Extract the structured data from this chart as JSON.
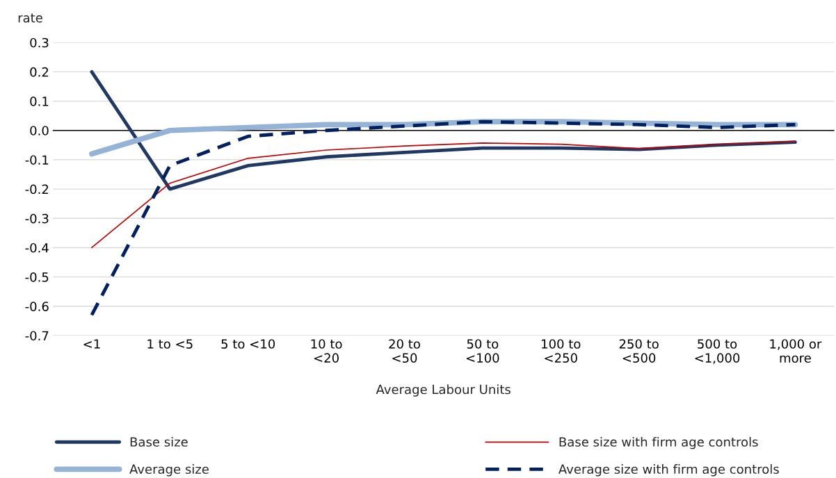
{
  "chart_data": {
    "type": "line",
    "ylabel": "rate",
    "xlabel": "Average Labour Units",
    "categories": [
      "<1",
      "1 to <5",
      "5 to <10",
      "10 to\n<20",
      "20 to\n<50",
      "50 to\n<100",
      "100 to\n<250",
      "250 to\n<500",
      "500 to\n<1,000",
      "1,000 or\nmore"
    ],
    "series": [
      {
        "name": "Base size",
        "color": "#1f3864",
        "values": [
          0.2,
          -0.2,
          -0.12,
          -0.09,
          -0.075,
          -0.06,
          -0.06,
          -0.065,
          -0.05,
          -0.04
        ]
      },
      {
        "name": "Average size",
        "color": "#95b3d7",
        "values": [
          -0.08,
          0.0,
          0.01,
          0.02,
          0.02,
          0.03,
          0.03,
          0.025,
          0.02,
          0.02
        ]
      },
      {
        "name": "Base size with firm age controls",
        "color": "#c00000",
        "values": [
          -0.4,
          -0.18,
          -0.095,
          -0.067,
          -0.053,
          -0.043,
          -0.047,
          -0.062,
          -0.048,
          -0.037
        ]
      },
      {
        "name": "Average size with firm age controls",
        "color": "#002060",
        "line_style": "dashed",
        "values": [
          -0.63,
          -0.12,
          -0.02,
          0.0,
          0.015,
          0.03,
          0.025,
          0.02,
          0.01,
          0.02
        ]
      }
    ],
    "ylim": [
      -0.7,
      0.3
    ],
    "yticks": [
      {
        "value": -0.7,
        "label": "-0.7"
      },
      {
        "value": -0.6,
        "label": "-0.6"
      },
      {
        "value": -0.5,
        "label": "-0.5"
      },
      {
        "value": -0.4,
        "label": "-0.4"
      },
      {
        "value": -0.3,
        "label": "-0.3"
      },
      {
        "value": -0.2,
        "label": "-0.2"
      },
      {
        "value": -0.1,
        "label": "-0.1"
      },
      {
        "value": 0,
        "label": "0.0"
      },
      {
        "value": 0.1,
        "label": "0.1"
      },
      {
        "value": 0.2,
        "label": "0.2"
      },
      {
        "value": 0.3,
        "label": "0.3"
      }
    ],
    "ref_lines": [
      {
        "axis": "y",
        "value": 0,
        "color": "#000000"
      }
    ],
    "grid": "y",
    "legend": "bottom",
    "marker": "none",
    "line_style": "solid"
  }
}
